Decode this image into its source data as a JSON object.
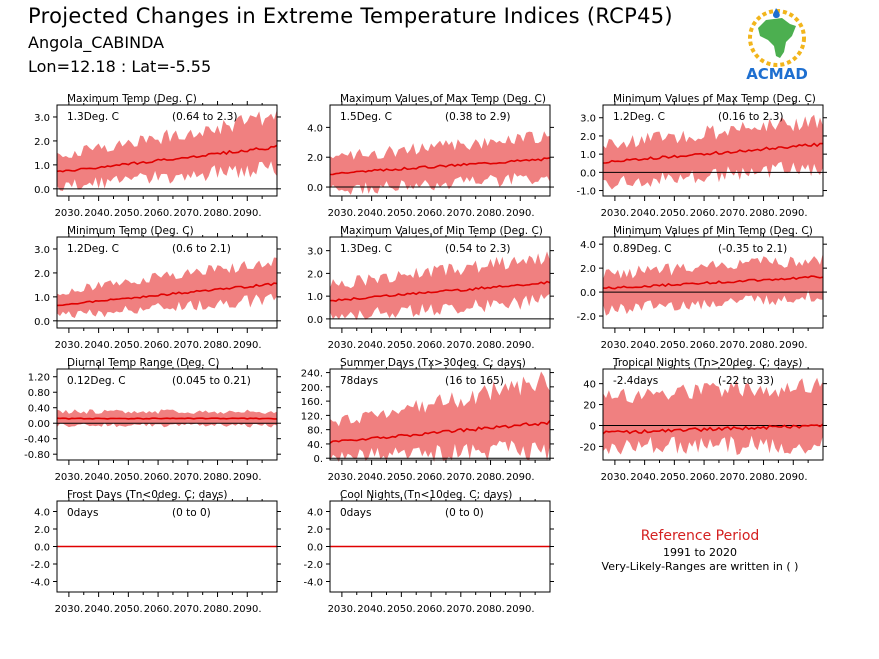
{
  "header": {
    "title": "Projected Changes in Extreme Temperature Indices (RCP45)",
    "subtitle": "Angola_CABINDA",
    "coords": "Lon=12.18 : Lat=-5.55"
  },
  "logo": {
    "text": "ACMAD",
    "icon": "africa-map-logo",
    "colors": {
      "africa": "#4caf50",
      "text": "#1e6fd0",
      "sun": "#f2b51c"
    }
  },
  "reference": {
    "title": "Reference Period",
    "years": "1991 to 2020",
    "note": "Very-Likely-Ranges are written in ( )"
  },
  "colors": {
    "band": "#f08080",
    "line": "#e00000",
    "zero": "#000000"
  },
  "chart_data": [
    {
      "type": "line",
      "title": "Maximum Temp (Deg. C)",
      "stat": "1.3Deg. C",
      "range": "(0.64 to 2.3)",
      "x_ticks": [
        "2030.",
        "2040.",
        "2050.",
        "2060.",
        "2070.",
        "2080.",
        "2090."
      ],
      "xlim": [
        2026,
        2100
      ],
      "y_ticks": [
        "0.0",
        "1.0",
        "2.0",
        "3.0"
      ],
      "y_tick_values": [
        0,
        1,
        2,
        3
      ],
      "ylim": [
        -0.3,
        3.5
      ],
      "series": [
        {
          "mean_start": 0.7,
          "mean_end": 1.75,
          "band_low_start": 0.1,
          "band_low_end": 0.9,
          "band_high_start": 1.4,
          "band_high_end": 3.0
        }
      ]
    },
    {
      "type": "line",
      "title": "Maximum Values of Max Temp (Deg. C)",
      "stat": "1.5Deg. C",
      "range": "(0.38 to 2.9)",
      "x_ticks": [
        "2030.",
        "2040.",
        "2050.",
        "2060.",
        "2070.",
        "2080.",
        "2090."
      ],
      "xlim": [
        2026,
        2100
      ],
      "y_ticks": [
        "0.0",
        "2.0",
        "4.0"
      ],
      "y_tick_values": [
        0,
        2,
        4
      ],
      "ylim": [
        -0.6,
        5.5
      ],
      "series": [
        {
          "mean_start": 0.9,
          "mean_end": 1.9,
          "band_low_start": -0.2,
          "band_low_end": 0.6,
          "band_high_start": 2.0,
          "band_high_end": 3.4
        }
      ]
    },
    {
      "type": "line",
      "title": "Minimum Values of Max Temp (Deg. C)",
      "stat": "1.2Deg. C",
      "range": "(0.16 to 2.3)",
      "x_ticks": [
        "2030.",
        "2040.",
        "2050.",
        "2060.",
        "2070.",
        "2080.",
        "2090."
      ],
      "xlim": [
        2026,
        2100
      ],
      "y_ticks": [
        "-1.0",
        "0.0",
        "1.0",
        "2.0",
        "3.0"
      ],
      "y_tick_values": [
        -1,
        0,
        1,
        2,
        3
      ],
      "ylim": [
        -1.3,
        3.7
      ],
      "series": [
        {
          "mean_start": 0.55,
          "mean_end": 1.55,
          "band_low_start": -0.6,
          "band_low_end": 0.3,
          "band_high_start": 1.5,
          "band_high_end": 2.9
        }
      ]
    },
    {
      "type": "line",
      "title": "Minimum Temp (Deg. C)",
      "stat": "1.2Deg. C",
      "range": "(0.6 to 2.1)",
      "x_ticks": [
        "2030.",
        "2040.",
        "2050.",
        "2060.",
        "2070.",
        "2080.",
        "2090."
      ],
      "xlim": [
        2026,
        2100
      ],
      "y_ticks": [
        "0.0",
        "1.0",
        "2.0",
        "3.0"
      ],
      "y_tick_values": [
        0,
        1,
        2,
        3
      ],
      "ylim": [
        -0.3,
        3.5
      ],
      "series": [
        {
          "mean_start": 0.65,
          "mean_end": 1.55,
          "band_low_start": 0.2,
          "band_low_end": 0.9,
          "band_high_start": 1.2,
          "band_high_end": 2.5
        }
      ]
    },
    {
      "type": "line",
      "title": "Maximum Values of Min Temp (Deg. C)",
      "stat": "1.3Deg. C",
      "range": "(0.54 to 2.3)",
      "x_ticks": [
        "2030.",
        "2040.",
        "2050.",
        "2060.",
        "2070.",
        "2080.",
        "2090."
      ],
      "xlim": [
        2026,
        2100
      ],
      "y_ticks": [
        "0.0",
        "1.0",
        "2.0",
        "3.0"
      ],
      "y_tick_values": [
        0,
        1,
        2,
        3
      ],
      "ylim": [
        -0.4,
        3.6
      ],
      "series": [
        {
          "mean_start": 0.8,
          "mean_end": 1.6,
          "band_low_start": 0.1,
          "band_low_end": 0.8,
          "band_high_start": 1.5,
          "band_high_end": 2.7
        }
      ]
    },
    {
      "type": "line",
      "title": "Minimum Values of Min Temp (Deg. C)",
      "stat": "0.89Deg. C",
      "range": "(-0.35 to 2.1)",
      "x_ticks": [
        "2030.",
        "2040.",
        "2050.",
        "2060.",
        "2070.",
        "2080.",
        "2090."
      ],
      "xlim": [
        2026,
        2100
      ],
      "y_ticks": [
        "-2.0",
        "0.0",
        "2.0",
        "4.0"
      ],
      "y_tick_values": [
        -2,
        0,
        2,
        4
      ],
      "ylim": [
        -3.0,
        4.6
      ],
      "series": [
        {
          "mean_start": 0.3,
          "mean_end": 1.3,
          "band_low_start": -1.5,
          "band_low_end": -0.3,
          "band_high_start": 1.5,
          "band_high_end": 2.8
        }
      ]
    },
    {
      "type": "line",
      "title": "Diurnal Temp Range (Deg. C)",
      "stat": "0.12Deg. C",
      "range": "(0.045 to 0.21)",
      "x_ticks": [
        "2030.",
        "2040.",
        "2050.",
        "2060.",
        "2070.",
        "2080.",
        "2090."
      ],
      "xlim": [
        2026,
        2100
      ],
      "y_ticks": [
        "-0.80",
        "-0.40",
        "0.00",
        "0.40",
        "0.80",
        "1.20"
      ],
      "y_tick_values": [
        -0.8,
        -0.4,
        0,
        0.4,
        0.8,
        1.2
      ],
      "ylim": [
        -0.95,
        1.4
      ],
      "series": [
        {
          "mean_start": 0.12,
          "mean_end": 0.12,
          "band_low_start": -0.05,
          "band_low_end": -0.05,
          "band_high_start": 0.3,
          "band_high_end": 0.3
        }
      ]
    },
    {
      "type": "line",
      "title": "Summer Days (Tx>30deg. C; days)",
      "stat": "78days",
      "range": "(16 to 165)",
      "x_ticks": [
        "2030.",
        "2040.",
        "2050.",
        "2060.",
        "2070.",
        "2080.",
        "2090."
      ],
      "xlim": [
        2026,
        2100
      ],
      "y_ticks": [
        "0.",
        "40.",
        "80.",
        "120.",
        "160.",
        "200.",
        "240."
      ],
      "y_tick_values": [
        0,
        40,
        80,
        120,
        160,
        200,
        240
      ],
      "ylim": [
        -5,
        250
      ],
      "series": [
        {
          "mean_start": 45,
          "mean_end": 100,
          "band_low_start": 5,
          "band_low_end": 25,
          "band_high_start": 100,
          "band_high_end": 215
        }
      ]
    },
    {
      "type": "line",
      "title": "Tropical Nights (Tn>20deg. C; days)",
      "stat": "-2.4days",
      "range": "(-22 to 33)",
      "x_ticks": [
        "2030.",
        "2040.",
        "2050.",
        "2060.",
        "2070.",
        "2080.",
        "2090."
      ],
      "xlim": [
        2026,
        2100
      ],
      "y_ticks": [
        "-20",
        "0",
        "20",
        "40"
      ],
      "y_tick_values": [
        -20,
        0,
        20,
        40
      ],
      "ylim": [
        -33,
        54
      ],
      "series": [
        {
          "mean_start": -7,
          "mean_end": 0,
          "band_low_start": -20,
          "band_low_end": -18,
          "band_high_start": 28,
          "band_high_end": 38
        }
      ]
    },
    {
      "type": "line",
      "title": "Frost Days (Tn<0deg. C; days)",
      "stat": "0days",
      "range": "(0 to 0)",
      "x_ticks": [
        "2030.",
        "2040.",
        "2050.",
        "2060.",
        "2070.",
        "2080.",
        "2090."
      ],
      "xlim": [
        2026,
        2100
      ],
      "y_ticks": [
        "-4.0",
        "-2.0",
        "0.0",
        "2.0",
        "4.0"
      ],
      "y_tick_values": [
        -4,
        -2,
        0,
        2,
        4
      ],
      "ylim": [
        -5.2,
        5.2
      ],
      "series": [
        {
          "mean_start": 0,
          "mean_end": 0,
          "band_low_start": 0,
          "band_low_end": 0,
          "band_high_start": 0,
          "band_high_end": 0
        }
      ]
    },
    {
      "type": "line",
      "title": "Cool Nights (Tn<10deg. C; days)",
      "stat": "0days",
      "range": "(0 to 0)",
      "x_ticks": [
        "2030.",
        "2040.",
        "2050.",
        "2060.",
        "2070.",
        "2080.",
        "2090."
      ],
      "xlim": [
        2026,
        2100
      ],
      "y_ticks": [
        "-4.0",
        "-2.0",
        "0.0",
        "2.0",
        "4.0"
      ],
      "y_tick_values": [
        -4,
        -2,
        0,
        2,
        4
      ],
      "ylim": [
        -5.2,
        5.2
      ],
      "series": [
        {
          "mean_start": 0,
          "mean_end": 0,
          "band_low_start": 0,
          "band_low_end": 0,
          "band_high_start": 0,
          "band_high_end": 0
        }
      ]
    }
  ]
}
